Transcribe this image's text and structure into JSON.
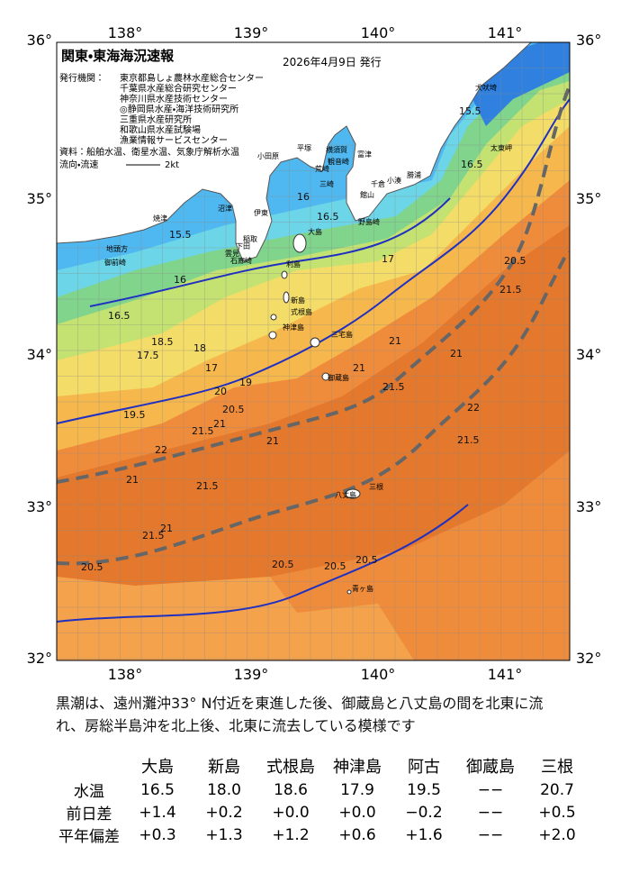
{
  "header": {
    "title": "関東・東海海況速報",
    "date": "2026年4月9日 発行",
    "issuer_label": "発行機関：",
    "issuers": [
      "東京都島しょ農林水産総合センター",
      "千葉県水産総合研究センター",
      "神奈川県水産技術センター",
      "◎静岡県水産・海洋技術研究所",
      "三重県水産研究所",
      "和歌山県水産試験場",
      "漁業情報サービスセンター"
    ],
    "source": "資料：船舶水温、衛星水温、気象庁解析水温",
    "legend_label": "流向・流速",
    "legend_speed": "2kt"
  },
  "map": {
    "lon_labels": [
      "138°",
      "139°",
      "140°",
      "141°"
    ],
    "lat_labels": [
      "36°",
      "35°",
      "34°",
      "33°",
      "32°"
    ],
    "places": [
      "犬吠埼",
      "太東岬",
      "平塚",
      "横須賀",
      "富津",
      "小田原",
      "観音崎",
      "荒崎",
      "千倉",
      "小湊",
      "勝浦",
      "三崎",
      "館山",
      "野島崎",
      "沼津",
      "伊東",
      "焼津",
      "大島",
      "稲取",
      "下田",
      "雲見",
      "石廊崎",
      "地頭方",
      "御前崎",
      "利島",
      "新島",
      "式根島",
      "神津島",
      "三宅島",
      "御蔵島",
      "八丈島",
      "三根",
      "青ヶ島"
    ],
    "contour_labels": [
      "15.5",
      "16",
      "16.5",
      "17.5",
      "18.5",
      "17",
      "18",
      "19",
      "19.5",
      "20",
      "20.5",
      "21",
      "21.5",
      "22",
      "21",
      "21.5",
      "21",
      "20.5",
      "21.5",
      "21",
      "20.5",
      "20.5",
      "21",
      "21",
      "21.5",
      "16",
      "16.5",
      "17",
      "15.5",
      "16.5",
      "20.5",
      "21.5",
      "21",
      "22",
      "21.5",
      "20.5"
    ]
  },
  "description": {
    "lines": [
      "黒潮は、遠州灘沖33° N付近を東進した後、御蔵島と八丈島の間を北東に流",
      "れ、房総半島沖を北上後、北東に流去している模様です"
    ]
  },
  "table": {
    "columns": [
      "大島",
      "新島",
      "式根島",
      "神津島",
      "阿古",
      "御蔵島",
      "三根"
    ],
    "rows": [
      {
        "label": "水温",
        "values": [
          "16.5",
          "18.0",
          "18.6",
          "17.9",
          "19.5",
          "−−",
          "20.7"
        ]
      },
      {
        "label": "前日差",
        "values": [
          "+1.4",
          "+0.2",
          "+0.0",
          "+0.0",
          "−0.2",
          "−−",
          "+0.5"
        ]
      },
      {
        "label": "平年偏差",
        "values": [
          "+0.3",
          "+1.3",
          "+1.2",
          "+0.6",
          "+1.6",
          "−−",
          "+2.0"
        ]
      }
    ]
  }
}
